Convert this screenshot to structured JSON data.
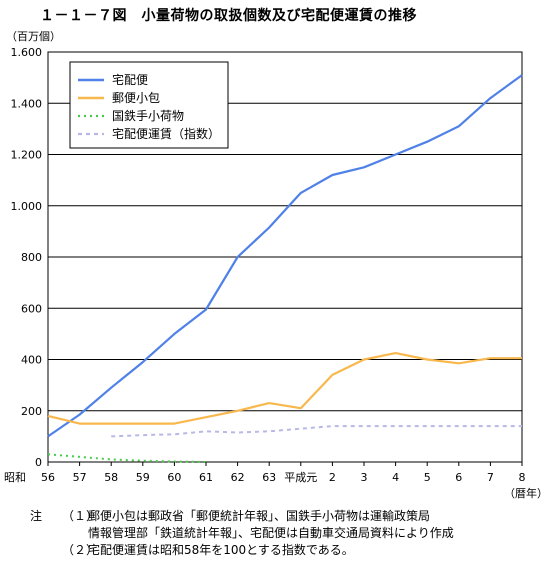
{
  "title": "１－１－７図　小量荷物の取扱個数及び宅配便運賃の推移",
  "chart_data": {
    "type": "line",
    "ylabel": "（百万個）",
    "xlabel": "（暦年）",
    "ylim": [
      0,
      1600
    ],
    "yticks": [
      0,
      200,
      400,
      600,
      800,
      1000,
      1200,
      1400,
      1600
    ],
    "ytick_labels": [
      "0",
      "200",
      "400",
      "600",
      "800",
      "1.000",
      "1.200",
      "1.400",
      "1.600"
    ],
    "x_prefix": "昭和",
    "categories": [
      "56",
      "57",
      "58",
      "59",
      "60",
      "61",
      "62",
      "63",
      "平成元",
      "2",
      "3",
      "4",
      "5",
      "6",
      "7",
      "8"
    ],
    "grid": true,
    "legend_position": "top-left",
    "series": [
      {
        "name": "宅配便",
        "color": "#4f81e8",
        "style": "solid",
        "values": [
          100,
          185,
          290,
          390,
          500,
          595,
          800,
          915,
          1050,
          1120,
          1150,
          1200,
          1250,
          1310,
          1420,
          1510
        ]
      },
      {
        "name": "郵便小包",
        "color": "#f8b84e",
        "style": "solid",
        "values": [
          180,
          150,
          150,
          150,
          150,
          175,
          200,
          230,
          210,
          340,
          400,
          425,
          400,
          385,
          405,
          405
        ]
      },
      {
        "name": "国鉄手小荷物",
        "color": "#44cc44",
        "style": "dotted",
        "values": [
          30,
          20,
          10,
          5,
          2,
          0,
          null,
          null,
          null,
          null,
          null,
          null,
          null,
          null,
          null,
          null
        ]
      },
      {
        "name": "宅配便運賃（指数）",
        "color": "#b8b8e8",
        "style": "dashed",
        "values": [
          null,
          null,
          100,
          105,
          108,
          120,
          115,
          120,
          130,
          140,
          140,
          140,
          140,
          140,
          140,
          140
        ]
      }
    ]
  },
  "notes": {
    "label": "注",
    "items": [
      {
        "num": "（１）",
        "lines": [
          "郵便小包は郵政省「郵便統計年報」、国鉄手小荷物は運輸政策局",
          "情報管理部「鉄道統計年報」、宅配便は自動車交通局資料により作成"
        ]
      },
      {
        "num": "（２）",
        "lines": [
          "宅配便運賃は昭和58年を100とする指数である。"
        ]
      }
    ]
  }
}
